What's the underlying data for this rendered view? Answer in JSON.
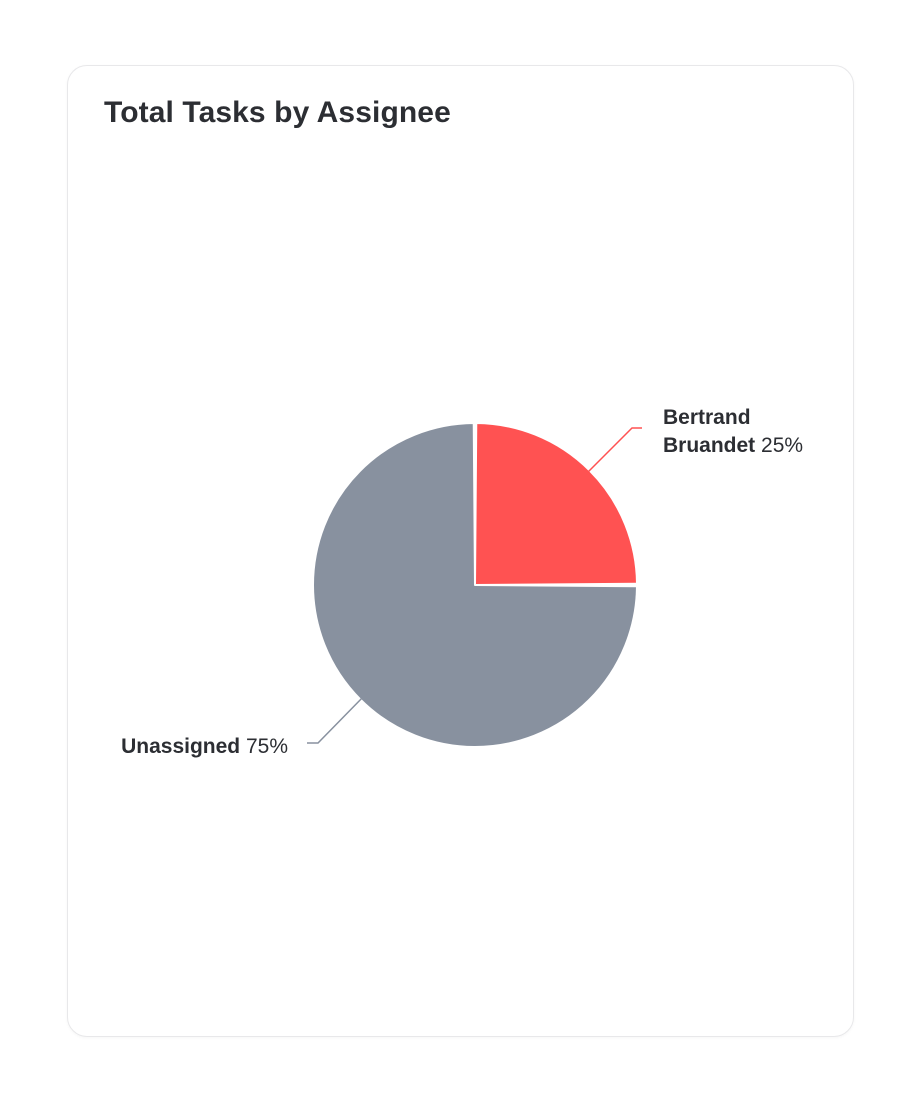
{
  "card": {
    "title": "Total Tasks by Assignee"
  },
  "chart_data": {
    "type": "pie",
    "title": "Total Tasks by Assignee",
    "slices": [
      {
        "name_lines": [
          "Bertrand",
          "Bruandet"
        ],
        "value": 25,
        "percent_label": "25%",
        "color": "#ff5252"
      },
      {
        "name_lines": [
          "Unassigned"
        ],
        "value": 75,
        "percent_label": "75%",
        "color": "#88919f"
      }
    ]
  }
}
